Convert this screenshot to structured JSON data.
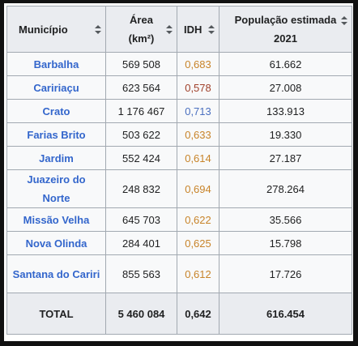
{
  "columns": [
    {
      "label": "Município"
    },
    {
      "label": "Área (km²)"
    },
    {
      "label": "IDH"
    },
    {
      "label": "População estimada 2021"
    }
  ],
  "rows": [
    {
      "municipio": "Barbalha",
      "area": "569 508",
      "idh": "0,683",
      "idh_color": "#c8842a",
      "populacao": "61.662"
    },
    {
      "municipio": "Caririaçu",
      "area": "623 564",
      "idh": "0,578",
      "idh_color": "#a0402a",
      "populacao": "27.008"
    },
    {
      "municipio": "Crato",
      "area": "1 176 467",
      "idh": "0,713",
      "idh_color": "#4a6fbf",
      "populacao": "133.913"
    },
    {
      "municipio": "Farias Brito",
      "area": "503 622",
      "idh": "0,633",
      "idh_color": "#c8842a",
      "populacao": "19.330"
    },
    {
      "municipio": "Jardim",
      "area": "552 424",
      "idh": "0,614",
      "idh_color": "#c8842a",
      "populacao": "27.187"
    },
    {
      "municipio": "Juazeiro do Norte",
      "area": "248 832",
      "idh": "0,694",
      "idh_color": "#c8842a",
      "populacao": "278.264"
    },
    {
      "municipio": "Missão Velha",
      "area": "645 703",
      "idh": "0,622",
      "idh_color": "#c8842a",
      "populacao": "35.566"
    },
    {
      "municipio": "Nova Olinda",
      "area": "284 401",
      "idh": "0,625",
      "idh_color": "#c8842a",
      "populacao": "15.798"
    },
    {
      "municipio": "Santana do Cariri",
      "area": "855 563",
      "idh": "0,612",
      "idh_color": "#c8842a",
      "populacao": "17.726"
    }
  ],
  "total": {
    "label": "TOTAL",
    "area": "5 460 084",
    "idh": "0,642",
    "populacao": "616.454"
  },
  "icons": {
    "sort": "sort-up-down-icon"
  },
  "colors": {
    "link": "#3366cc",
    "header_bg": "#eaecf0",
    "border": "#a2a9b1"
  }
}
